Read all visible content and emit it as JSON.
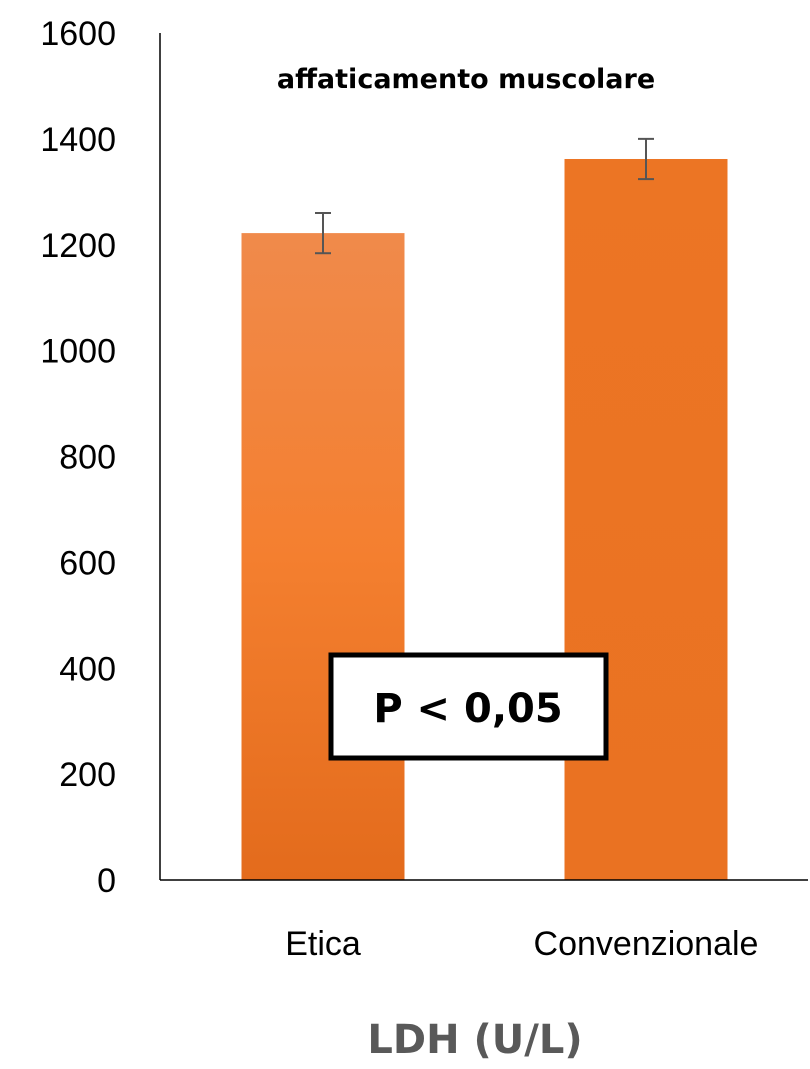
{
  "chart_data": {
    "type": "bar",
    "title": "affaticamento muscolare",
    "xlabel": "LDH (U/L)",
    "ylabel": "",
    "ylim": [
      0,
      1600
    ],
    "yticks": [
      0,
      200,
      400,
      600,
      800,
      1000,
      1200,
      1400,
      1600
    ],
    "categories": [
      "Etica",
      "Convenzionale"
    ],
    "values": [
      1222,
      1362
    ],
    "error": [
      38,
      38
    ],
    "colors": [
      "#F08A4B",
      "#EC7524"
    ],
    "annotation": "P < 0,05",
    "grid": false,
    "legend": "none"
  }
}
